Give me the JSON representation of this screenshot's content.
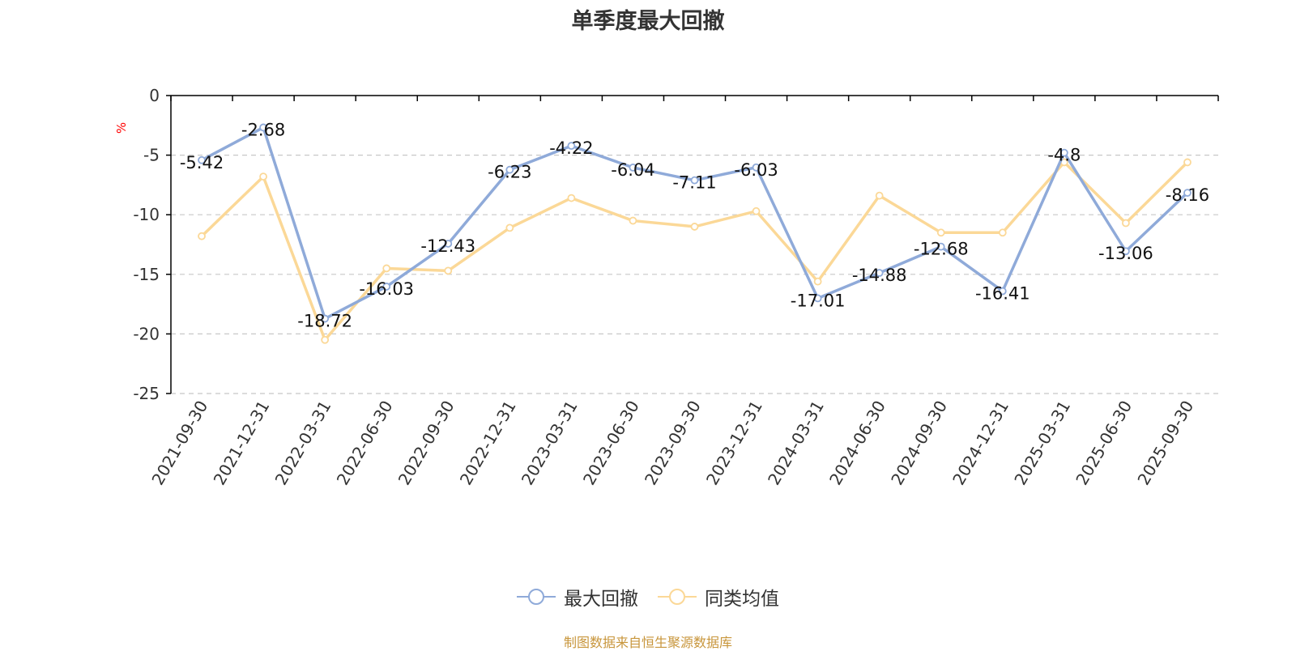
{
  "title": "单季度最大回撤",
  "source_text": "制图数据来自恒生聚源数据库",
  "colors": {
    "series1": "#8faad9",
    "series2": "#fbd897",
    "ylabel": "#ff0000",
    "source": "#c8963c",
    "grid": "#c8c8c8",
    "axis": "#000000"
  },
  "chart_data": {
    "type": "line",
    "title": "单季度最大回撤",
    "ylabel": "%",
    "xlabel": "",
    "ylim": [
      -25,
      0
    ],
    "yticks": [
      0,
      -5,
      -10,
      -15,
      -20,
      -25
    ],
    "categories": [
      "2021-09-30",
      "2021-12-31",
      "2022-03-31",
      "2022-06-30",
      "2022-09-30",
      "2022-12-31",
      "2023-03-31",
      "2023-06-30",
      "2023-09-30",
      "2023-12-31",
      "2024-03-31",
      "2024-06-30",
      "2024-09-30",
      "2024-12-31",
      "2025-03-31",
      "2025-06-30",
      "2025-09-30"
    ],
    "series": [
      {
        "name": "最大回撤",
        "values": [
          -5.42,
          -2.68,
          -18.72,
          -16.03,
          -12.43,
          -6.23,
          -4.22,
          -6.04,
          -7.11,
          -6.03,
          -17.01,
          -14.88,
          -12.68,
          -16.41,
          -4.8,
          -13.06,
          -8.16
        ],
        "labels": [
          "-5.42",
          "-2.68",
          "-18.72",
          "-16.03",
          "-12.43",
          "-6.23",
          "-4.22",
          "-6.04",
          "-7.11",
          "-6.03",
          "-17.01",
          "-14.88",
          "-12.68",
          "-16.41",
          "-4.8",
          "-13.06",
          "-8.16"
        ]
      },
      {
        "name": "同类均值",
        "values": [
          -11.8,
          -6.8,
          -20.5,
          -14.5,
          -14.7,
          -11.1,
          -8.6,
          -10.5,
          -11.0,
          -9.7,
          -15.6,
          -8.4,
          -11.5,
          -11.5,
          -5.6,
          -10.7,
          -5.6
        ]
      }
    ],
    "grid": true,
    "legend_position": "bottom"
  }
}
